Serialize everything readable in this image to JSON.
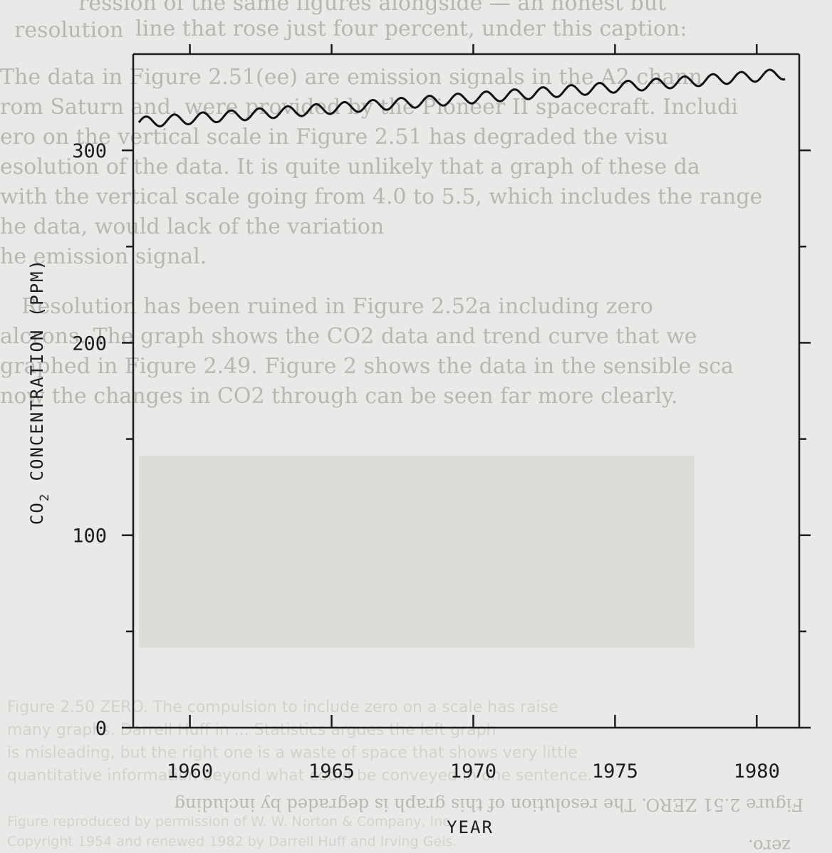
{
  "background_text": {
    "top_lines": [
      "ression of the same figures alongside — an honest but",
      "line that rose just four percent, under this caption:",
      "resolution",
      "The data in Figure 2.51(ee) are emission signals in the A2 chann",
      "rom Saturn and, were provided by the Pioneer II spacecraft. Includi",
      "ero on the vertical scale in Figure 2.51 has degraded the visu",
      "esolution of the data. It is quite unlikely that a graph of these da",
      "with the vertical scale going from 4.0 to 5.5, which includes the range",
      "he data, would lack of the variation",
      "he emission signal.",
      "Resolution has been ruined in Figure 2.52a including zero",
      "alcrons. The graph shows the CO2 data and trend curve that we",
      "graphed in Figure 2.49. Figure 2 shows the data in the sensible sca",
      "now the changes in CO2 through can be seen far more clearly."
    ],
    "bottom_lines": [
      "Figure 2.50 ZERO. The compulsion to include zero on a scale has raise",
      "many graphs. Darrell Huff in ... Statistics argues the left graph",
      "is misleading, but the right one is a waste of space that shows very little",
      "quantitative information beyond what could be conveyed in one sentence.",
      "Figure reproduced by permission of W. W. Norton & Company, Inc.",
      "Copyright 1954 and renewed 1982 by Darrell Huff and Irving Geis."
    ],
    "caption_mirror": "Figure 2.51 ZERO. The resolution of this graph is degraded by including",
    "caption_mirror_2": "zero."
  },
  "chart_data": {
    "type": "line",
    "title": "",
    "xlabel": "YEAR",
    "ylabel": "CO2 CONCENTRATION (PPM)",
    "ylabel_main": "CO",
    "ylabel_sub": "2",
    "ylabel_rest": " CONCENTRATION (PPM)",
    "xlim": [
      1958.0,
      1981.5
    ],
    "ylim": [
      0,
      350
    ],
    "x_ticks": [
      1960,
      1965,
      1970,
      1975,
      1980
    ],
    "x_tick_labels": [
      "1960",
      "1965",
      "1970",
      "1975",
      "1980"
    ],
    "y_ticks": [
      0,
      100,
      200,
      300
    ],
    "y_tick_labels": [
      "0",
      "100",
      "200",
      "300"
    ],
    "y_minor_ticks": [
      50,
      150,
      250
    ],
    "grid": false,
    "series": [
      {
        "start_year": 1958.2,
        "end_year": 1981.0,
        "trend_start_ppm": 314.5,
        "trend_end_ppm": 338.5,
        "seasonal_amplitude_ppm": 2.8,
        "curvature_ppm": 1.2
      }
    ]
  }
}
